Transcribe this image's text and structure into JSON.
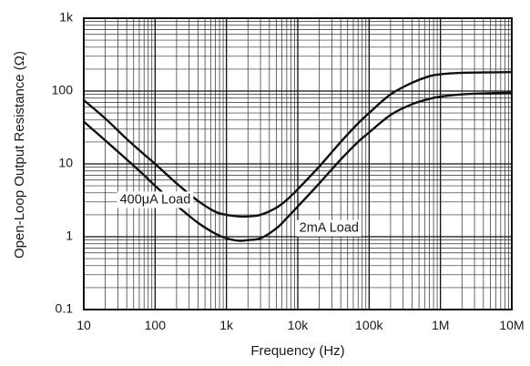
{
  "chart_data": {
    "type": "line",
    "title": "",
    "xlabel": "Frequency (Hz)",
    "ylabel": "Open-Loop Output Resistance (Ω)",
    "x_scale": "log",
    "y_scale": "log",
    "xlim": [
      10,
      10000000
    ],
    "ylim": [
      0.1,
      1000
    ],
    "grid": true,
    "x_ticks": [
      10,
      100,
      1000,
      10000,
      100000,
      1000000,
      10000000
    ],
    "x_tick_labels": [
      "10",
      "100",
      "1k",
      "10k",
      "100k",
      "1M",
      "10M"
    ],
    "y_ticks": [
      0.1,
      1,
      10,
      100,
      1000
    ],
    "y_tick_labels": [
      "0.1",
      "1",
      "10",
      "100",
      "1k"
    ],
    "series": [
      {
        "name": "400μA Load",
        "label_at": [
          32,
          3.2
        ],
        "x": [
          10,
          20,
          40,
          70,
          100,
          200,
          400,
          700,
          1000,
          1500,
          2000,
          3000,
          5000,
          7000,
          10000,
          20000,
          40000,
          70000,
          100000,
          200000,
          400000,
          700000,
          1000000,
          2000000,
          4000000,
          10000000
        ],
        "y": [
          75,
          42,
          22,
          13.5,
          10,
          5.4,
          3.1,
          2.2,
          2.0,
          1.9,
          1.9,
          2.0,
          2.5,
          3.2,
          4.5,
          9.2,
          20,
          36,
          50,
          90,
          130,
          160,
          170,
          178,
          180,
          182
        ]
      },
      {
        "name": "2mA Load",
        "label_at": [
          10500,
          1.3
        ],
        "x": [
          10,
          20,
          40,
          70,
          100,
          200,
          400,
          700,
          1000,
          1500,
          2000,
          3000,
          5000,
          7000,
          10000,
          20000,
          40000,
          70000,
          100000,
          200000,
          400000,
          700000,
          1000000,
          2000000,
          4000000,
          10000000
        ],
        "y": [
          38,
          21,
          11.5,
          7,
          5,
          2.7,
          1.55,
          1.1,
          0.95,
          0.88,
          0.9,
          0.95,
          1.3,
          1.8,
          2.6,
          5.4,
          11.5,
          20,
          27,
          47,
          66,
          78,
          84,
          90,
          93,
          95
        ]
      }
    ]
  }
}
